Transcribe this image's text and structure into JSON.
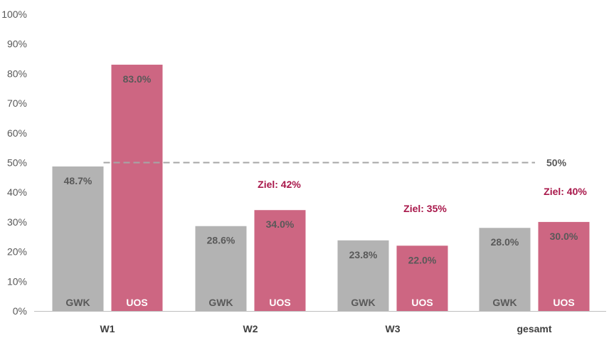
{
  "chart_data": {
    "type": "bar",
    "categories": [
      "W1",
      "W2",
      "W3",
      "gesamt"
    ],
    "series": [
      {
        "name": "GWK",
        "values": [
          48.7,
          28.6,
          23.8,
          28.0
        ],
        "labels": [
          "48.7%",
          "28.6%",
          "23.8%",
          "28.0%"
        ],
        "color": "#b3b3b3",
        "label_color": "#595959"
      },
      {
        "name": "UOS",
        "values": [
          83.0,
          34.0,
          22.0,
          30.0
        ],
        "labels": [
          "83.0%",
          "34.0%",
          "22.0%",
          "30.0%"
        ],
        "color": "#cd6682",
        "label_color": "#ffffff"
      }
    ],
    "ylim": [
      0,
      100
    ],
    "yticks": [
      "0%",
      "10%",
      "20%",
      "30%",
      "40%",
      "50%",
      "60%",
      "70%",
      "80%",
      "90%",
      "100%"
    ],
    "reference_line": {
      "value": 50,
      "label": "50%",
      "color": "#a6a6a6"
    },
    "targets": [
      {
        "category": "W2",
        "text": "Ziel: 42%"
      },
      {
        "category": "W3",
        "text": "Ziel: 35%"
      },
      {
        "category": "gesamt",
        "text": "Ziel: 40%"
      }
    ],
    "target_color": "#a8174a",
    "grid": false
  }
}
